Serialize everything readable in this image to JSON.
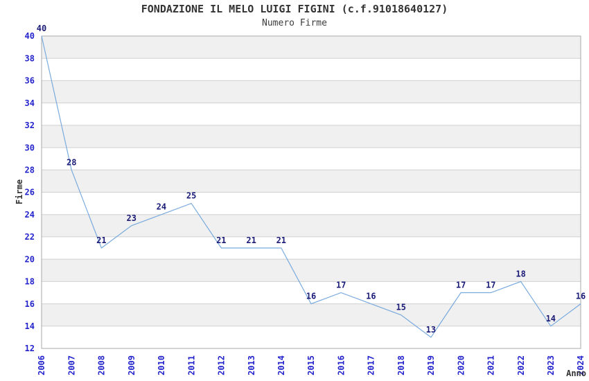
{
  "chart_data": {
    "type": "line",
    "title": "FONDAZIONE IL MELO LUIGI FIGINI (c.f.91018640127)",
    "subtitle": "Numero Firme",
    "xlabel": "Anno",
    "ylabel": "Firme",
    "categories": [
      "2006",
      "2007",
      "2008",
      "2009",
      "2010",
      "2011",
      "2012",
      "2013",
      "2014",
      "2015",
      "2016",
      "2017",
      "2018",
      "2019",
      "2020",
      "2021",
      "2022",
      "2023",
      "2024"
    ],
    "values": [
      40,
      28,
      21,
      23,
      24,
      25,
      21,
      21,
      21,
      16,
      17,
      16,
      15,
      13,
      17,
      17,
      18,
      14,
      16
    ],
    "ylim": [
      12,
      40
    ],
    "ytick_step": 2,
    "grid": true,
    "legend_position": "none",
    "band_style": "alternating-horizontal"
  },
  "colors": {
    "line": "#79aade",
    "band": "#f0f0f0",
    "gridline": "#d0d0d0",
    "border": "#aaaaaa",
    "tick_label": "#2424cc",
    "data_label": "#1b1b78",
    "title": "#333333",
    "background": "#ffffff"
  }
}
